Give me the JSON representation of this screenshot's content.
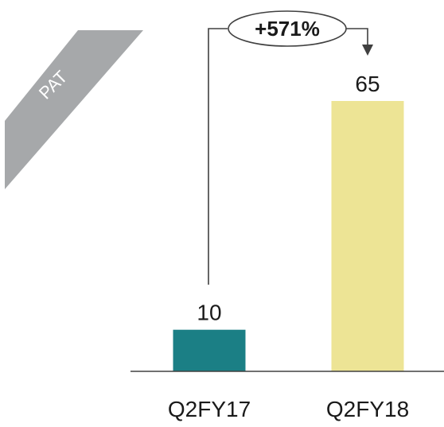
{
  "colors": {
    "ribbon": "#a6a8aa",
    "bar_q2fy17": "#1b7f85",
    "bar_q2fy18": "#ede495",
    "axis": "#404040",
    "text": "#1a1a1a",
    "ribbon_text": "#ffffff"
  },
  "ribbon_label": "PAT",
  "growth_label": "+571%",
  "chart_data": {
    "type": "bar",
    "categories": [
      "Q2FY17",
      "Q2FY18"
    ],
    "values": [
      10,
      65
    ],
    "data_labels": [
      "10",
      "65"
    ],
    "title": "",
    "xlabel": "",
    "ylabel": "",
    "ylim": [
      0,
      70
    ],
    "grid": false,
    "legend": "none"
  }
}
